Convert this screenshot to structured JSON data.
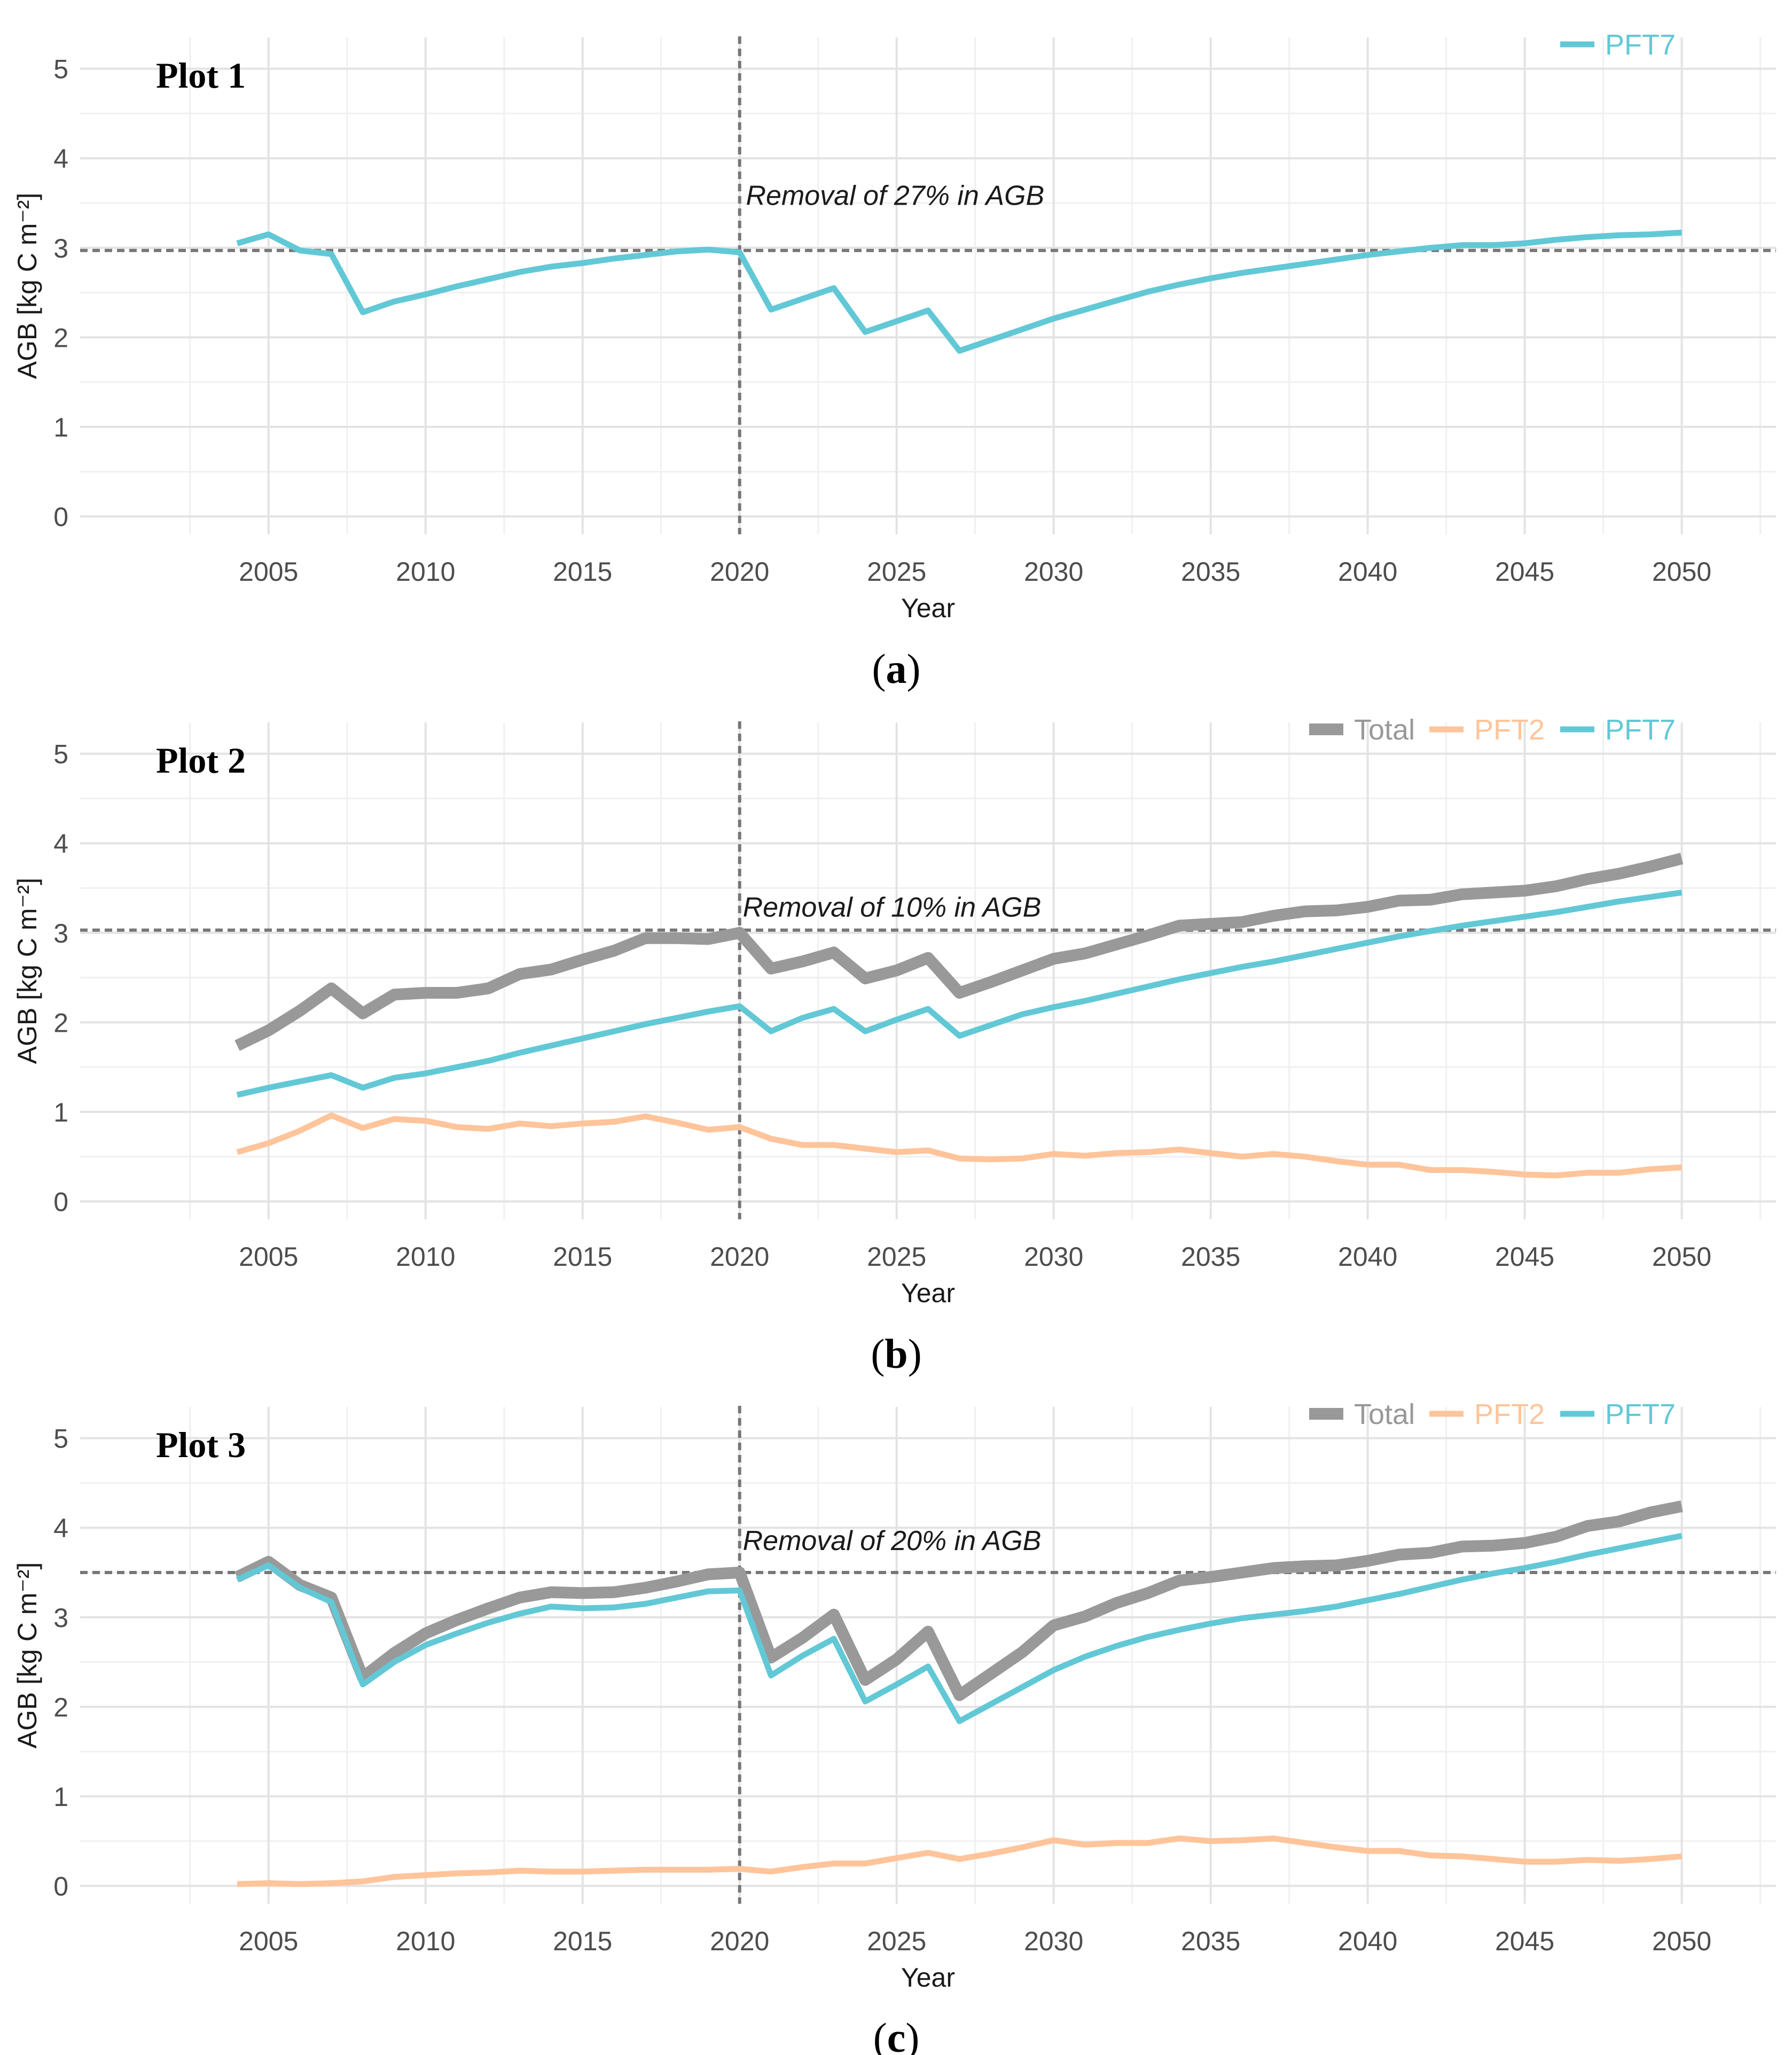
{
  "figure": {
    "x_axis_title": "Year",
    "y_axis_title": "AGB [kg C m⁻²]",
    "y_ticks": [
      0,
      1,
      2,
      3,
      4,
      5
    ],
    "x_ticks": [
      2005,
      2010,
      2015,
      2020,
      2025,
      2030,
      2035,
      2040,
      2045,
      2050
    ]
  },
  "colors": {
    "Total": "#999999",
    "PFT2": "#ffc49a",
    "PFT7": "#62c8d6",
    "reference_line": "#777777",
    "grid_major": "#e3e3e3",
    "grid_minor": "#f0f0f0"
  },
  "chart_data": [
    {
      "type": "line",
      "panel_label": "a",
      "title": "Plot 1",
      "xlabel": "Year",
      "ylabel": "AGB [kg C m⁻²]",
      "xlim": [
        1999,
        2053
      ],
      "ylim": [
        -0.2,
        5.35
      ],
      "legend": [
        "PFT7"
      ],
      "legend_position": "top-right",
      "reference_y": 2.97,
      "reference_x": 2020,
      "annotation": "Removal of 27% in AGB",
      "annotation_pos": {
        "x": 2020.2,
        "y": 3.48
      },
      "x": [
        2004,
        2005,
        2006,
        2007,
        2008,
        2009,
        2010,
        2011,
        2012,
        2013,
        2014,
        2015,
        2016,
        2017,
        2018,
        2019,
        2020,
        2021,
        2022,
        2023,
        2024,
        2025,
        2026,
        2027,
        2028,
        2029,
        2030,
        2031,
        2032,
        2033,
        2034,
        2035,
        2036,
        2037,
        2038,
        2039,
        2040,
        2041,
        2042,
        2043,
        2044,
        2045,
        2046,
        2047,
        2048,
        2049,
        2050
      ],
      "series": [
        {
          "name": "PFT7",
          "values": [
            3.05,
            3.15,
            2.97,
            2.93,
            2.28,
            2.4,
            2.48,
            2.57,
            2.65,
            2.73,
            2.79,
            2.83,
            2.88,
            2.92,
            2.96,
            2.98,
            2.95,
            2.31,
            2.43,
            2.55,
            2.06,
            2.18,
            2.3,
            1.85,
            1.97,
            2.09,
            2.21,
            2.31,
            2.41,
            2.51,
            2.59,
            2.66,
            2.72,
            2.77,
            2.82,
            2.87,
            2.92,
            2.96,
            3.0,
            3.03,
            3.03,
            3.05,
            3.09,
            3.12,
            3.14,
            3.15,
            3.17
          ]
        }
      ]
    },
    {
      "type": "line",
      "panel_label": "b",
      "title": "Plot 2",
      "xlabel": "Year",
      "ylabel": "AGB [kg C m⁻²]",
      "xlim": [
        1999,
        2053
      ],
      "ylim": [
        -0.2,
        5.35
      ],
      "legend": [
        "Total",
        "PFT2",
        "PFT7"
      ],
      "legend_position": "top-right",
      "reference_y": 3.03,
      "reference_x": 2020,
      "annotation": "Removal of 10% in AGB",
      "annotation_pos": {
        "x": 2020.1,
        "y": 3.18
      },
      "x": [
        2004,
        2005,
        2006,
        2007,
        2008,
        2009,
        2010,
        2011,
        2012,
        2013,
        2014,
        2015,
        2016,
        2017,
        2018,
        2019,
        2020,
        2021,
        2022,
        2023,
        2024,
        2025,
        2026,
        2027,
        2028,
        2029,
        2030,
        2031,
        2032,
        2033,
        2034,
        2035,
        2036,
        2037,
        2038,
        2039,
        2040,
        2041,
        2042,
        2043,
        2044,
        2045,
        2046,
        2047,
        2048,
        2049,
        2050
      ],
      "series": [
        {
          "name": "Total",
          "values": [
            1.74,
            1.91,
            2.13,
            2.38,
            2.1,
            2.31,
            2.33,
            2.33,
            2.38,
            2.54,
            2.59,
            2.7,
            2.8,
            2.94,
            2.94,
            2.93,
            3.0,
            2.6,
            2.68,
            2.78,
            2.49,
            2.58,
            2.72,
            2.33,
            2.45,
            2.58,
            2.71,
            2.77,
            2.87,
            2.97,
            3.08,
            3.1,
            3.12,
            3.19,
            3.24,
            3.25,
            3.29,
            3.36,
            3.37,
            3.43,
            3.45,
            3.47,
            3.52,
            3.6,
            3.66,
            3.74,
            3.83
          ]
        },
        {
          "name": "PFT2",
          "values": [
            0.55,
            0.65,
            0.79,
            0.96,
            0.82,
            0.92,
            0.9,
            0.83,
            0.81,
            0.87,
            0.84,
            0.87,
            0.89,
            0.95,
            0.88,
            0.8,
            0.83,
            0.7,
            0.63,
            0.63,
            0.59,
            0.55,
            0.57,
            0.48,
            0.47,
            0.48,
            0.53,
            0.51,
            0.54,
            0.55,
            0.58,
            0.54,
            0.5,
            0.53,
            0.5,
            0.45,
            0.41,
            0.41,
            0.35,
            0.35,
            0.33,
            0.3,
            0.29,
            0.32,
            0.32,
            0.36,
            0.38
          ]
        },
        {
          "name": "PFT7",
          "values": [
            1.19,
            1.27,
            1.34,
            1.41,
            1.27,
            1.38,
            1.43,
            1.5,
            1.57,
            1.66,
            1.74,
            1.82,
            1.9,
            1.98,
            2.05,
            2.12,
            2.18,
            1.9,
            2.05,
            2.15,
            1.9,
            2.03,
            2.15,
            1.85,
            1.97,
            2.09,
            2.17,
            2.24,
            2.32,
            2.4,
            2.48,
            2.55,
            2.62,
            2.68,
            2.75,
            2.82,
            2.89,
            2.96,
            3.02,
            3.08,
            3.13,
            3.18,
            3.23,
            3.29,
            3.35,
            3.4,
            3.45
          ]
        }
      ]
    },
    {
      "type": "line",
      "panel_label": "c",
      "title": "Plot 3",
      "xlabel": "Year",
      "ylabel": "AGB [kg C m⁻²]",
      "xlim": [
        1999,
        2053
      ],
      "ylim": [
        -0.2,
        5.35
      ],
      "legend": [
        "Total",
        "PFT2",
        "PFT7"
      ],
      "legend_position": "top-right",
      "reference_y": 3.5,
      "reference_x": 2020,
      "annotation": "Removal of 20% in AGB",
      "annotation_pos": {
        "x": 2020.1,
        "y": 3.75
      },
      "x": [
        2004,
        2005,
        2006,
        2007,
        2008,
        2009,
        2010,
        2011,
        2012,
        2013,
        2014,
        2015,
        2016,
        2017,
        2018,
        2019,
        2020,
        2021,
        2022,
        2023,
        2024,
        2025,
        2026,
        2027,
        2028,
        2029,
        2030,
        2031,
        2032,
        2033,
        2034,
        2035,
        2036,
        2037,
        2038,
        2039,
        2040,
        2041,
        2042,
        2043,
        2044,
        2045,
        2046,
        2047,
        2048,
        2049,
        2050
      ],
      "series": [
        {
          "name": "Total",
          "values": [
            3.45,
            3.62,
            3.36,
            3.22,
            2.33,
            2.6,
            2.82,
            2.97,
            3.1,
            3.22,
            3.28,
            3.27,
            3.28,
            3.33,
            3.4,
            3.48,
            3.5,
            2.55,
            2.77,
            3.03,
            2.3,
            2.53,
            2.84,
            2.13,
            2.37,
            2.61,
            2.91,
            3.01,
            3.16,
            3.27,
            3.41,
            3.45,
            3.5,
            3.55,
            3.57,
            3.58,
            3.63,
            3.7,
            3.72,
            3.79,
            3.8,
            3.83,
            3.9,
            4.02,
            4.07,
            4.17,
            4.24
          ]
        },
        {
          "name": "PFT2",
          "values": [
            0.02,
            0.03,
            0.02,
            0.03,
            0.05,
            0.1,
            0.12,
            0.14,
            0.15,
            0.17,
            0.16,
            0.16,
            0.17,
            0.18,
            0.18,
            0.18,
            0.19,
            0.16,
            0.21,
            0.25,
            0.25,
            0.31,
            0.37,
            0.3,
            0.36,
            0.43,
            0.51,
            0.46,
            0.48,
            0.48,
            0.53,
            0.5,
            0.51,
            0.53,
            0.48,
            0.43,
            0.39,
            0.39,
            0.34,
            0.33,
            0.3,
            0.27,
            0.27,
            0.29,
            0.28,
            0.3,
            0.33
          ]
        },
        {
          "name": "PFT7",
          "values": [
            3.42,
            3.58,
            3.33,
            3.17,
            2.25,
            2.5,
            2.69,
            2.82,
            2.94,
            3.04,
            3.12,
            3.1,
            3.11,
            3.15,
            3.22,
            3.29,
            3.3,
            2.35,
            2.57,
            2.76,
            2.06,
            2.25,
            2.45,
            1.84,
            2.03,
            2.22,
            2.41,
            2.56,
            2.68,
            2.78,
            2.86,
            2.93,
            2.99,
            3.03,
            3.07,
            3.12,
            3.19,
            3.26,
            3.34,
            3.42,
            3.49,
            3.55,
            3.62,
            3.7,
            3.77,
            3.84,
            3.91
          ]
        }
      ]
    }
  ]
}
